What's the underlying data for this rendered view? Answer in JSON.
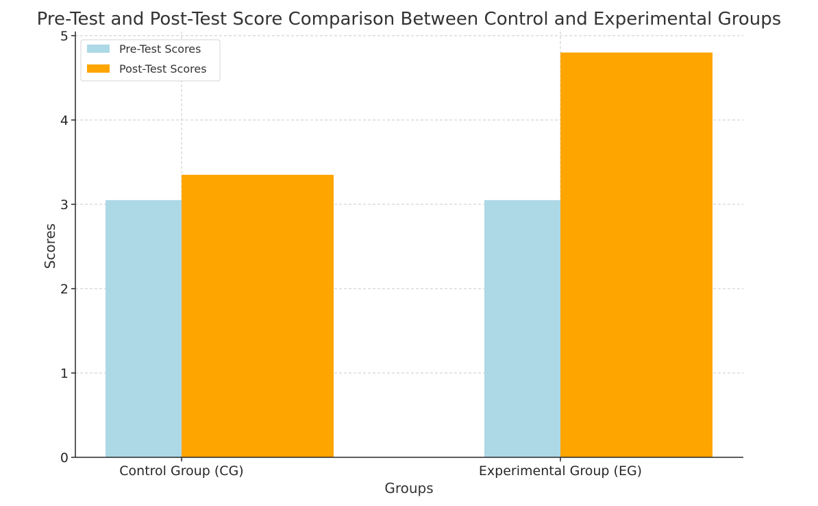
{
  "chart_data": {
    "type": "bar",
    "title": "Pre-Test and Post-Test Score Comparison Between Control and Experimental Groups",
    "xlabel": "Groups",
    "ylabel": "Scores",
    "categories": [
      "Control Group (CG)",
      "Experimental Group (EG)"
    ],
    "series": [
      {
        "name": "Pre-Test Scores",
        "values": [
          3.05,
          3.05
        ],
        "color": "#add8e6"
      },
      {
        "name": "Post-Test Scores",
        "values": [
          3.35,
          4.8
        ],
        "color": "#ffa500"
      }
    ],
    "ylim": [
      0,
      5
    ],
    "yticks": [
      "0",
      "1",
      "2",
      "3",
      "4",
      "5"
    ],
    "grid": true,
    "legend_position": "upper-left"
  }
}
